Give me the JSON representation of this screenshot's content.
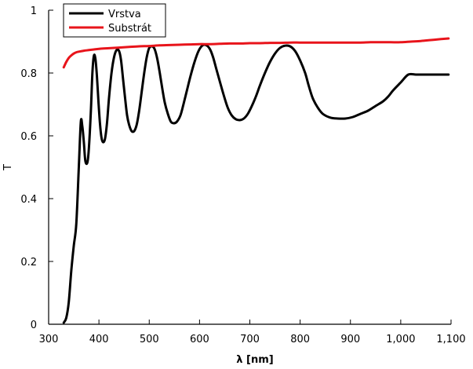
{
  "chart_data": {
    "type": "line",
    "xlabel": "λ [nm]",
    "ylabel": "T",
    "xlim": [
      300,
      1100
    ],
    "ylim": [
      0,
      1
    ],
    "x_ticks": [
      300,
      400,
      500,
      600,
      700,
      800,
      900,
      1000,
      1100
    ],
    "x_tick_labels": [
      "300",
      "400",
      "500",
      "600",
      "700",
      "800",
      "900",
      "1,000",
      "1,100"
    ],
    "y_ticks": [
      0,
      0.2,
      0.4,
      0.6,
      0.8,
      1
    ],
    "y_tick_labels": [
      "0",
      "0.2",
      "0.4",
      "0.6",
      "0.8",
      "1"
    ],
    "grid": false,
    "legend_position": "top-left",
    "series": [
      {
        "name": "Vrstva",
        "color": "#000000",
        "x": [
          330,
          335,
          340,
          345,
          350,
          355,
          360,
          364,
          367,
          370,
          373,
          377,
          380,
          384,
          387,
          390,
          393,
          396,
          399,
          402,
          405,
          408,
          412,
          416,
          420,
          425,
          430,
          435,
          440,
          444,
          448,
          452,
          456,
          460,
          465,
          470,
          475,
          480,
          485,
          490,
          495,
          500,
          506,
          511,
          516,
          521,
          526,
          531,
          537,
          543,
          549,
          555,
          562,
          568,
          575,
          582,
          590,
          598,
          606,
          614,
          621,
          627,
          633,
          640,
          648,
          656,
          664,
          672,
          680,
          688,
          696,
          704,
          712,
          720,
          730,
          740,
          750,
          760,
          770,
          780,
          790,
          800,
          810,
          817,
          825,
          835,
          845,
          860,
          875,
          890,
          905,
          920,
          935,
          950,
          965,
          975,
          985,
          1000,
          1015,
          1030,
          1045,
          1060,
          1075,
          1090,
          1095
        ],
        "y": [
          0.005,
          0.02,
          0.07,
          0.17,
          0.25,
          0.32,
          0.5,
          0.645,
          0.63,
          0.58,
          0.52,
          0.515,
          0.56,
          0.68,
          0.8,
          0.855,
          0.845,
          0.79,
          0.71,
          0.64,
          0.595,
          0.58,
          0.59,
          0.64,
          0.72,
          0.8,
          0.85,
          0.873,
          0.87,
          0.84,
          0.78,
          0.72,
          0.665,
          0.635,
          0.615,
          0.615,
          0.635,
          0.68,
          0.74,
          0.8,
          0.85,
          0.88,
          0.885,
          0.875,
          0.845,
          0.8,
          0.75,
          0.705,
          0.67,
          0.645,
          0.64,
          0.645,
          0.665,
          0.7,
          0.745,
          0.79,
          0.835,
          0.87,
          0.888,
          0.888,
          0.875,
          0.85,
          0.815,
          0.775,
          0.73,
          0.69,
          0.665,
          0.653,
          0.65,
          0.655,
          0.67,
          0.695,
          0.725,
          0.76,
          0.8,
          0.835,
          0.862,
          0.88,
          0.887,
          0.885,
          0.87,
          0.84,
          0.8,
          0.76,
          0.72,
          0.69,
          0.67,
          0.658,
          0.655,
          0.655,
          0.66,
          0.67,
          0.68,
          0.695,
          0.71,
          0.725,
          0.745,
          0.77,
          0.795,
          0.795,
          0.795,
          0.795,
          0.795,
          0.795,
          0.795
        ]
      },
      {
        "name": "Substrát",
        "color": "#e8141b",
        "x": [
          330,
          335,
          340,
          345,
          350,
          355,
          360,
          370,
          380,
          390,
          400,
          420,
          440,
          460,
          480,
          500,
          520,
          540,
          560,
          580,
          600,
          620,
          640,
          660,
          680,
          700,
          720,
          740,
          760,
          780,
          800,
          820,
          840,
          860,
          880,
          900,
          920,
          940,
          960,
          980,
          1000,
          1020,
          1040,
          1060,
          1080,
          1095
        ],
        "y": [
          0.818,
          0.835,
          0.848,
          0.856,
          0.862,
          0.866,
          0.868,
          0.871,
          0.873,
          0.875,
          0.877,
          0.879,
          0.881,
          0.883,
          0.885,
          0.886,
          0.888,
          0.889,
          0.89,
          0.891,
          0.892,
          0.892,
          0.893,
          0.894,
          0.894,
          0.895,
          0.895,
          0.896,
          0.896,
          0.897,
          0.897,
          0.897,
          0.897,
          0.897,
          0.897,
          0.897,
          0.897,
          0.898,
          0.898,
          0.898,
          0.898,
          0.9,
          0.902,
          0.905,
          0.908,
          0.91
        ]
      }
    ]
  }
}
